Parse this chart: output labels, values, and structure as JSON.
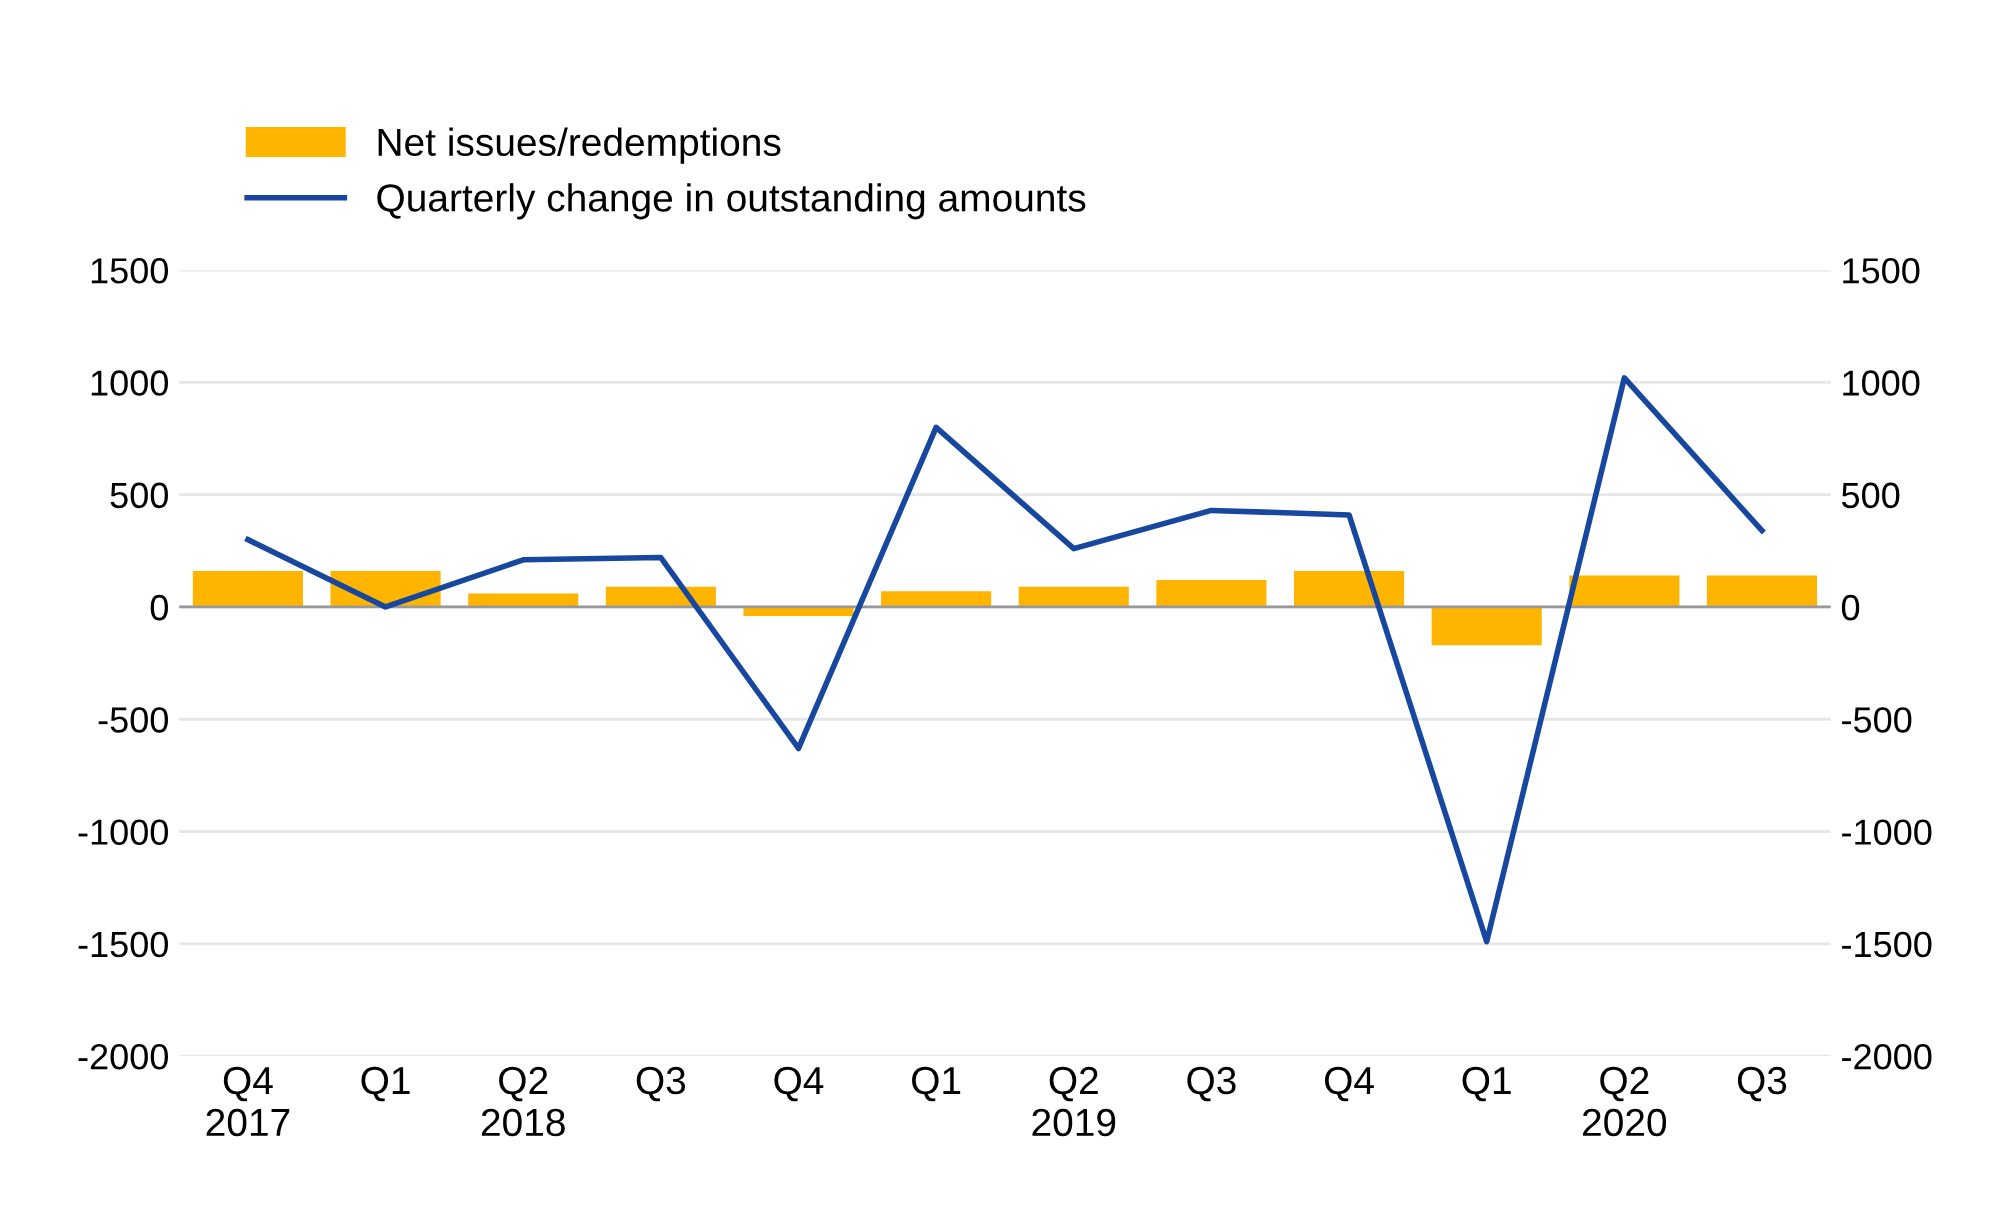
{
  "chart_data": {
    "type": "bar",
    "categories": [
      "Q4\n2017",
      "Q1",
      "Q2\n2018",
      "Q3",
      "Q4",
      "Q1",
      "Q2\n2019",
      "Q3",
      "Q4",
      "Q1",
      "Q2\n2020",
      "Q3"
    ],
    "series": [
      {
        "name": "Net issues/redemptions",
        "color": "#ffb400",
        "values": [
          160,
          160,
          60,
          90,
          -40,
          70,
          90,
          120,
          160,
          -170,
          140,
          140
        ]
      },
      {
        "name": "Quarterly change in outstanding amounts",
        "type": "line",
        "color": "#17479e",
        "values": [
          300,
          0,
          210,
          220,
          -630,
          800,
          260,
          430,
          410,
          -1490,
          1020,
          340
        ]
      }
    ],
    "ylim": [
      -2000,
      1500
    ],
    "yticks": [
      -2000,
      -1500,
      -1000,
      -500,
      0,
      500,
      1000,
      1500
    ],
    "y2lim": [
      -2000,
      1500
    ],
    "y2ticks": [
      -2000,
      -1500,
      -1000,
      -500,
      0,
      500,
      1000,
      1500
    ],
    "grid": "y",
    "legend": "top left",
    "marker": "none",
    "line_style": "solid"
  }
}
